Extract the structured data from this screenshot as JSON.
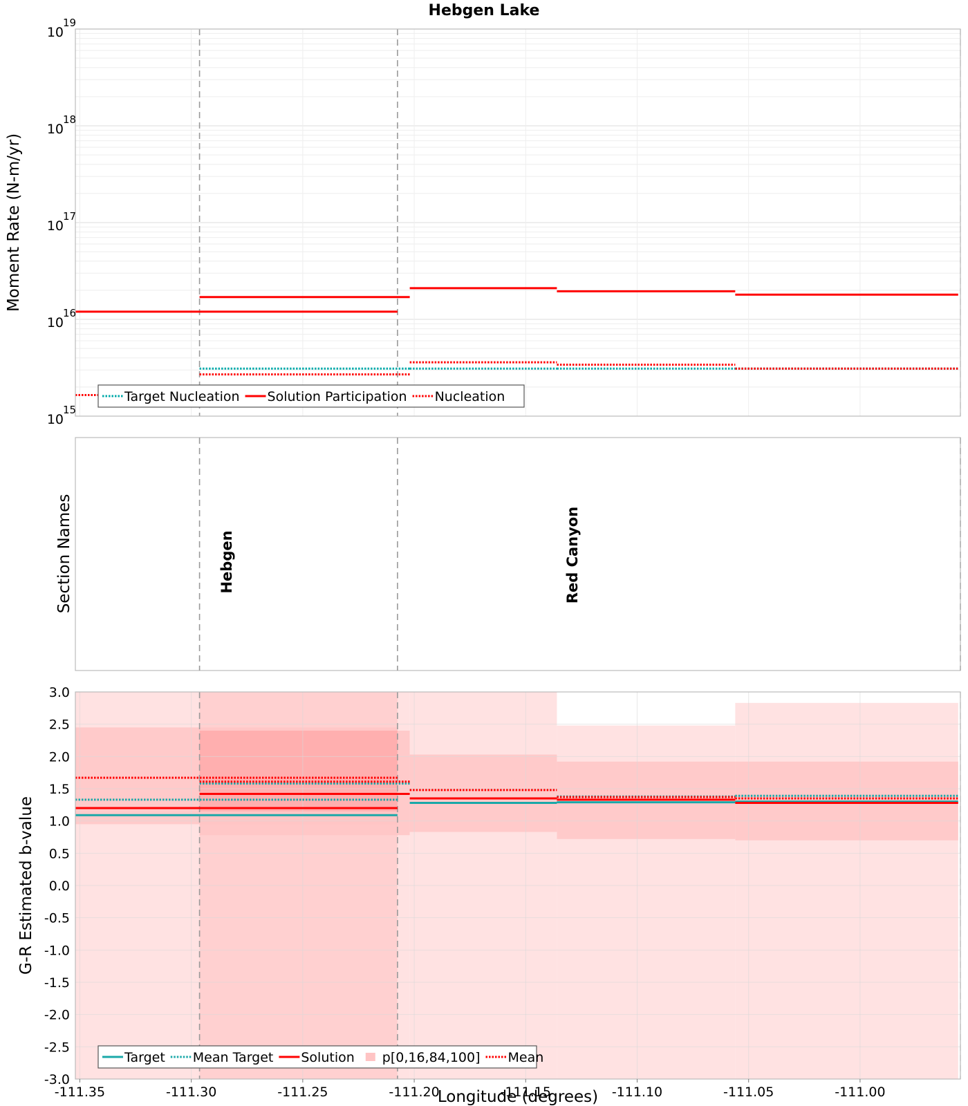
{
  "title": "Hebgen Lake",
  "xlabel": "Longitude (degrees)",
  "x_ticks": [
    "-111.35",
    "-111.30",
    "-111.25",
    "-111.20",
    "-111.15",
    "-111.10",
    "-111.05",
    "-111.00"
  ],
  "x_tick_values": [
    -111.35,
    -111.3,
    -111.25,
    -111.2,
    -111.15,
    -111.1,
    -111.05,
    -111.0
  ],
  "xlim": [
    -111.352,
    -110.955
  ],
  "section_boundaries": [
    -111.2963,
    -111.2075
  ],
  "colors": {
    "solution": "#ff0000",
    "target": "#00aaaa",
    "target_b": "#1aa8a8",
    "band_light": "#ffdddd",
    "band_mid": "#ffc4c4",
    "band_overlap": "#ff9c9c",
    "divider": "#999999",
    "frame": "#bbbbbb",
    "grid": "#e4e4e4"
  },
  "chart_data": [
    {
      "type": "line",
      "panel": "moment-rate",
      "ylabel": "Moment Rate (N-m/yr)",
      "yscale": "log",
      "ylim": [
        1000000000000000.0,
        1e+19
      ],
      "y_tick_bases": [
        "10",
        "10",
        "10",
        "10",
        "10"
      ],
      "y_tick_exponents": [
        "15",
        "16",
        "17",
        "18",
        "19"
      ],
      "y_tick_values": [
        1000000000000000.0,
        1e+16,
        1e+17,
        1e+18,
        1e+19
      ],
      "legend": {
        "position": "bottom-left",
        "entries": [
          "Target Nucleation",
          "Solution Participation",
          "Nucleation"
        ]
      },
      "series": [
        {
          "name": "Target Nucleation",
          "style": "dotted",
          "color": "target",
          "segments": [
            {
              "x": [
                -111.2963,
                -111.202
              ],
              "y": 3100000000000000.0
            },
            {
              "x": [
                -111.202,
                -111.136
              ],
              "y": 3100000000000000.0
            },
            {
              "x": [
                -111.136,
                -111.056
              ],
              "y": 3100000000000000.0
            },
            {
              "x": [
                -111.056,
                -110.956
              ],
              "y": 3100000000000000.0
            }
          ]
        },
        {
          "name": "Solution Participation",
          "style": "solid",
          "color": "solution",
          "segments": [
            {
              "x": [
                -111.352,
                -111.2075
              ],
              "y": 1.2e+16
            },
            {
              "x": [
                -111.2963,
                -111.202
              ],
              "y": 1.7e+16
            },
            {
              "x": [
                -111.202,
                -111.136
              ],
              "y": 2.1e+16
            },
            {
              "x": [
                -111.136,
                -111.056
              ],
              "y": 1.95e+16
            },
            {
              "x": [
                -111.056,
                -110.956
              ],
              "y": 1.8e+16
            }
          ]
        },
        {
          "name": "Nucleation",
          "style": "dotted",
          "color": "solution",
          "segments": [
            {
              "x": [
                -111.352,
                -111.325
              ],
              "y": 1650000000000000.0
            },
            {
              "x": [
                -111.2963,
                -111.202
              ],
              "y": 2700000000000000.0
            },
            {
              "x": [
                -111.202,
                -111.136
              ],
              "y": 3600000000000000.0
            },
            {
              "x": [
                -111.136,
                -111.056
              ],
              "y": 3400000000000000.0
            },
            {
              "x": [
                -111.056,
                -110.956
              ],
              "y": 3100000000000000.0
            }
          ]
        }
      ]
    },
    {
      "type": "table",
      "panel": "section-names",
      "ylabel": "Section Names",
      "sections": [
        {
          "name": "Hebgen",
          "x": -111.284
        },
        {
          "name": "Red Canyon",
          "x": -111.129
        }
      ]
    },
    {
      "type": "line",
      "panel": "b-value",
      "ylabel": "G-R Estimated b-value",
      "ylim": [
        -3.0,
        3.0
      ],
      "y_ticks": [
        "-3.0",
        "-2.5",
        "-2.0",
        "-1.5",
        "-1.0",
        "-0.5",
        "0.0",
        "0.5",
        "1.0",
        "1.5",
        "2.0",
        "2.5",
        "3.0"
      ],
      "y_tick_values": [
        -3.0,
        -2.5,
        -2.0,
        -1.5,
        -1.0,
        -0.5,
        0.0,
        0.5,
        1.0,
        1.5,
        2.0,
        2.5,
        3.0
      ],
      "legend": {
        "position": "bottom-left",
        "entries": [
          "Target",
          "Mean Target",
          "Solution",
          "p[0,16,84,100]",
          "Mean"
        ]
      },
      "bands": [
        {
          "x": [
            -111.352,
            -111.2075
          ],
          "p0": -3.0,
          "p16": 0.95,
          "p84": 2.45,
          "p100": 3.0
        },
        {
          "x": [
            -111.2963,
            -111.202
          ],
          "p0": -3.0,
          "p16": 0.78,
          "p84": 2.4,
          "p100": 3.0
        },
        {
          "x": [
            -111.202,
            -111.136
          ],
          "p0": -3.0,
          "p16": 0.83,
          "p84": 2.03,
          "p100": 3.0
        },
        {
          "x": [
            -111.136,
            -111.056
          ],
          "p0": -3.0,
          "p16": 0.72,
          "p84": 1.92,
          "p100": 2.48
        },
        {
          "x": [
            -111.056,
            -110.956
          ],
          "p0": -3.0,
          "p16": 0.7,
          "p84": 1.92,
          "p100": 2.83
        }
      ],
      "overlap_band": {
        "x": [
          -111.2963,
          -111.2075
        ],
        "p16": 1.15,
        "p84": 2.4
      },
      "series": [
        {
          "name": "Target",
          "style": "solid",
          "color": "target",
          "segments": [
            {
              "x": [
                -111.352,
                -111.2075
              ],
              "y": 1.09
            },
            {
              "x": [
                -111.202,
                -111.136
              ],
              "y": 1.28
            },
            {
              "x": [
                -111.136,
                -111.056
              ],
              "y": 1.29
            },
            {
              "x": [
                -111.056,
                -110.956
              ],
              "y": 1.3
            }
          ]
        },
        {
          "name": "Mean Target",
          "style": "dotted",
          "color": "target",
          "segments": [
            {
              "x": [
                -111.352,
                -111.2075
              ],
              "y": 1.33
            },
            {
              "x": [
                -111.2963,
                -111.202
              ],
              "y": 1.58
            },
            {
              "x": [
                -111.136,
                -111.056
              ],
              "y": 1.38
            },
            {
              "x": [
                -111.056,
                -110.956
              ],
              "y": 1.39
            }
          ]
        },
        {
          "name": "Solution",
          "style": "solid",
          "color": "solution",
          "segments": [
            {
              "x": [
                -111.352,
                -111.2075
              ],
              "y": 1.2
            },
            {
              "x": [
                -111.2963,
                -111.202
              ],
              "y": 1.42
            },
            {
              "x": [
                -111.202,
                -111.136
              ],
              "y": 1.35
            },
            {
              "x": [
                -111.136,
                -111.056
              ],
              "y": 1.33
            },
            {
              "x": [
                -111.056,
                -110.956
              ],
              "y": 1.28
            }
          ]
        },
        {
          "name": "Mean",
          "style": "dotted",
          "color": "solution",
          "segments": [
            {
              "x": [
                -111.352,
                -111.2075
              ],
              "y": 1.67
            },
            {
              "x": [
                -111.2963,
                -111.202
              ],
              "y": 1.61
            },
            {
              "x": [
                -111.202,
                -111.136
              ],
              "y": 1.48
            },
            {
              "x": [
                -111.136,
                -111.056
              ],
              "y": 1.37
            },
            {
              "x": [
                -111.056,
                -110.956
              ],
              "y": 1.35
            }
          ]
        }
      ]
    }
  ]
}
